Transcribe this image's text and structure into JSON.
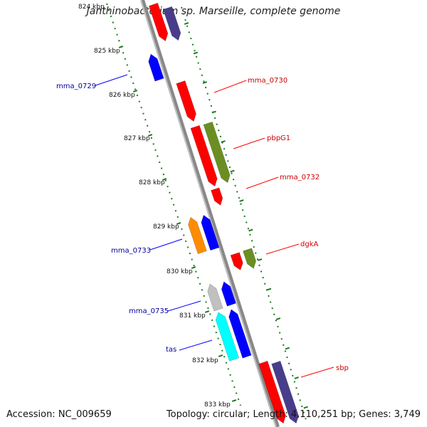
{
  "title": "Janthinobacterium sp. Marseille, complete genome",
  "footer": {
    "accession": "Accession: NC_009659",
    "summary": "Topology: circular; Length: 4,110,251 bp; Genes: 3,749"
  },
  "kbp_labels": [
    "824 kbp",
    "825 kbp",
    "826 kbp",
    "827 kbp",
    "828 kbp",
    "829 kbp",
    "830 kbp",
    "831 kbp",
    "832 kbp",
    "833 kbp"
  ],
  "genes_forward": [
    {
      "label": "mma_0730",
      "color": "#ff0000"
    },
    {
      "label": "pbpG1",
      "color": "#6b8e23"
    },
    {
      "label": "mma_0732",
      "color": "#ff0000"
    },
    {
      "label": "dgkA",
      "color": "#ff0000"
    },
    {
      "label": "sbp",
      "color": "#ff0000"
    }
  ],
  "genes_reverse": [
    {
      "label": "mma_0729",
      "color": "#0000ff"
    },
    {
      "label": "mma_0733",
      "color": "#0000ff"
    },
    {
      "label": "mma_0735",
      "color": "#0000ff"
    },
    {
      "label": "tas",
      "color": "#0000ff"
    }
  ],
  "colors": {
    "forward_label": "#cc0000",
    "reverse_label": "#000099",
    "backbone": "#888888",
    "tick": "#1e7a1e",
    "red": "#ff0000",
    "olive": "#6b8e23",
    "navy": "#483d8b",
    "blue": "#0000ff",
    "orange": "#ff8c00",
    "gray": "#c0c0c0",
    "cyan": "#00ffff"
  }
}
